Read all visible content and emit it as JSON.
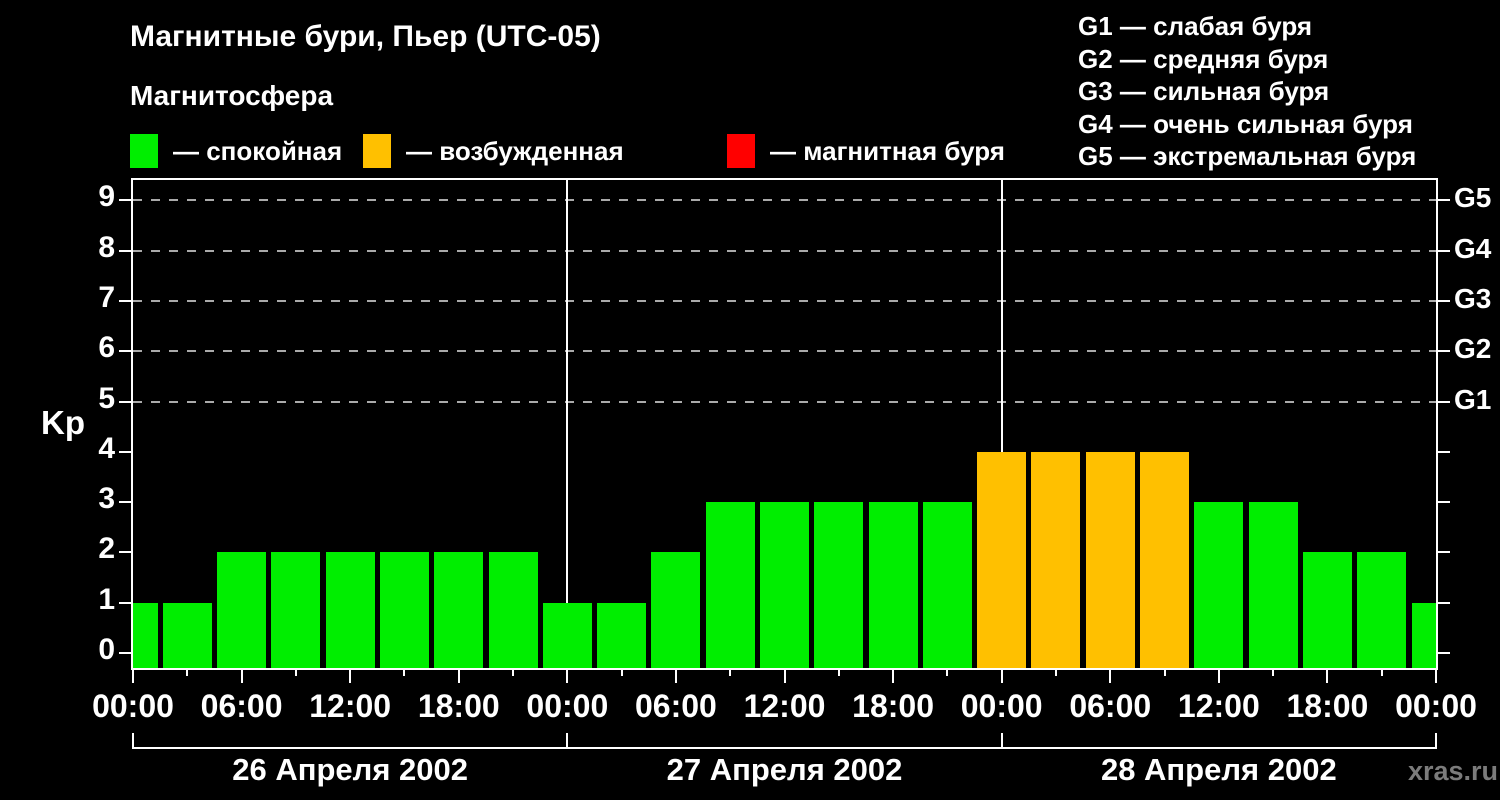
{
  "chart_data": {
    "type": "bar",
    "title": "Магнитные бури, Пьер (UTC-05)",
    "subtitle": "Магнитосфера",
    "ylabel": "Kp",
    "watermark": "xras.ru",
    "legend": [
      {
        "name": "quiet",
        "label": "— спокойная",
        "color": "#00ee00"
      },
      {
        "name": "excited",
        "label": "— возбужденная",
        "color": "#ffc000"
      },
      {
        "name": "storm",
        "label": "— магнитная буря",
        "color": "#ff0000"
      }
    ],
    "g_legend": [
      "G1 — слабая буря",
      "G2 — средняя буря",
      "G3 — сильная буря",
      "G4 — очень сильная буря",
      "G5 — экстремальная буря"
    ],
    "y_ticks": [
      0,
      1,
      2,
      3,
      4,
      5,
      6,
      7,
      8,
      9
    ],
    "ylim": [
      0,
      9
    ],
    "grid_levels": [
      5,
      6,
      7,
      8,
      9
    ],
    "g_axis": [
      {
        "label": "G1",
        "kp": 5
      },
      {
        "label": "G2",
        "kp": 6
      },
      {
        "label": "G3",
        "kp": 7
      },
      {
        "label": "G4",
        "kp": 8
      },
      {
        "label": "G5",
        "kp": 9
      }
    ],
    "time_label_cycle": [
      "00:00",
      "06:00",
      "12:00",
      "18:00"
    ],
    "hours_per_bar": 3,
    "hours_per_day": 24,
    "days": [
      {
        "date": "26 Апреля 2002",
        "values": [
          1,
          1,
          2,
          2,
          2,
          2,
          2,
          2
        ]
      },
      {
        "date": "27 Апреля 2002",
        "values": [
          1,
          1,
          2,
          3,
          3,
          3,
          3,
          3
        ]
      },
      {
        "date": "28 Апреля 2002",
        "values": [
          4,
          4,
          4,
          4,
          3,
          3,
          2,
          2
        ]
      }
    ],
    "next_day_first_value": 1,
    "color_scale": {
      "quiet_max_kp": 3,
      "excited_max_kp": 4
    },
    "colors": {
      "quiet": "#00ee00",
      "excited": "#ffc000",
      "storm": "#ff0000",
      "grid": "#aaaaaa",
      "axis": "#ffffff",
      "text": "#ffffff",
      "watermark": "#7b7b7b",
      "background": "#000000"
    }
  }
}
